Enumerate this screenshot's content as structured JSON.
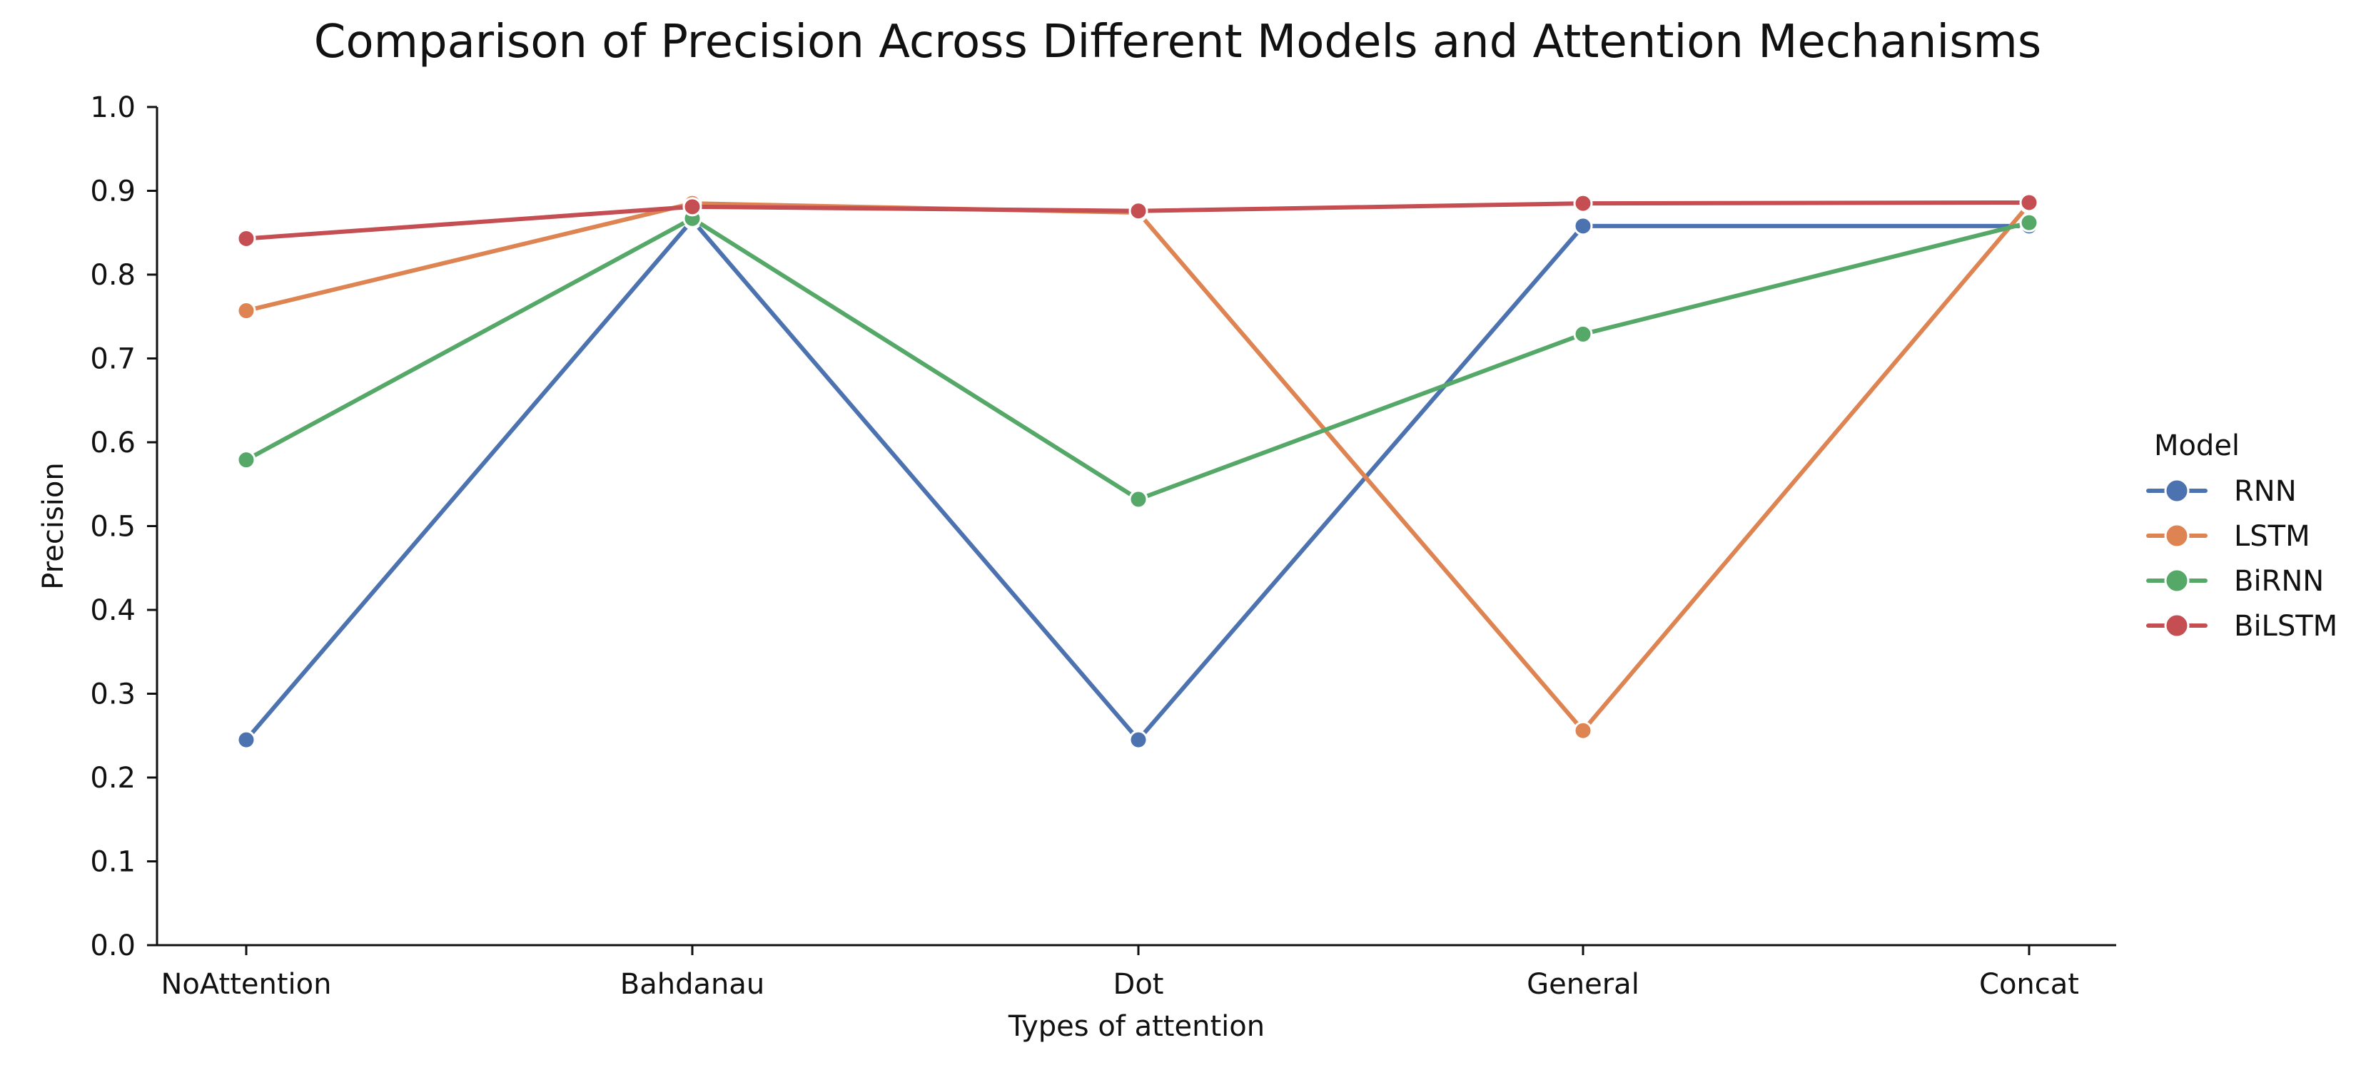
{
  "chart_data": {
    "type": "line",
    "title": "Comparison of Precision Across Different Models and Attention Mechanisms",
    "xlabel": "Types of attention",
    "ylabel": "Precision",
    "categories": [
      "NoAttention",
      "Bahdanau",
      "Dot",
      "General",
      "Concat"
    ],
    "ylim": [
      0.0,
      1.0
    ],
    "yticks": [
      "0.0",
      "0.1",
      "0.2",
      "0.3",
      "0.4",
      "0.5",
      "0.6",
      "0.7",
      "0.8",
      "0.9",
      "1.0"
    ],
    "grid": false,
    "legend": {
      "title": "Model",
      "placement": "right"
    },
    "series": [
      {
        "name": "RNN",
        "color": "#4c72b0",
        "values": [
          0.245,
          0.865,
          0.245,
          0.858,
          0.858
        ]
      },
      {
        "name": "LSTM",
        "color": "#dd8452",
        "values": [
          0.757,
          0.885,
          0.874,
          0.256,
          0.884
        ]
      },
      {
        "name": "BiRNN",
        "color": "#55a868",
        "values": [
          0.579,
          0.867,
          0.532,
          0.729,
          0.862
        ]
      },
      {
        "name": "BiLSTM",
        "color": "#c44e52",
        "values": [
          0.843,
          0.881,
          0.876,
          0.885,
          0.886
        ]
      }
    ]
  }
}
